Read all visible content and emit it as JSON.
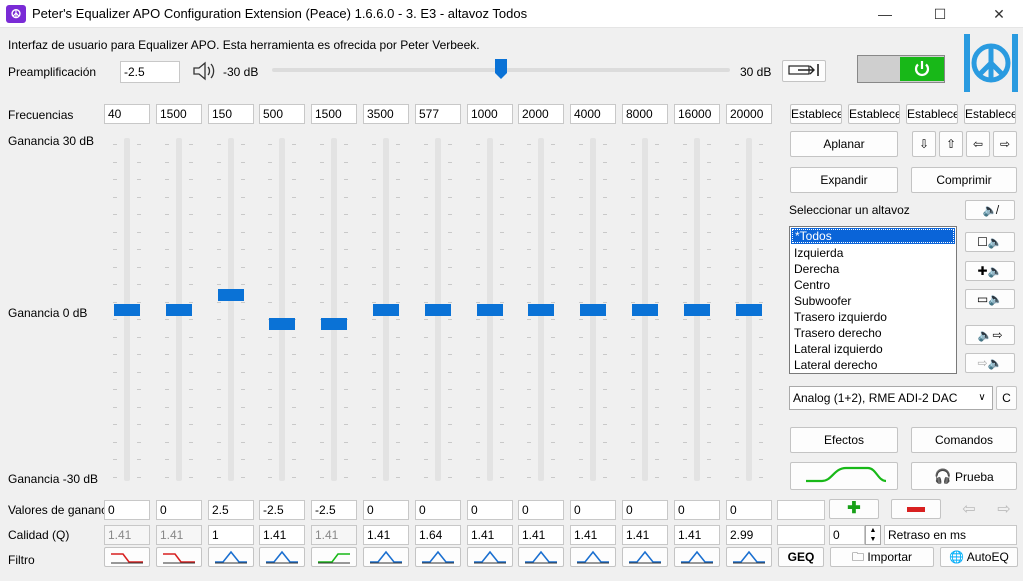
{
  "window": {
    "title": "Peter's Equalizer APO Configuration Extension (Peace) 1.6.6.0 - 3. E3 - altavoz Todos",
    "minimize": "—",
    "maximize": "☐",
    "close": "✕"
  },
  "header": {
    "description": "Interfaz de usuario para Equalizer APO. Esta herramienta es ofrecida por Peter Verbeek.",
    "preamp_label": "Preamplificación",
    "preamp_value": "-2.5",
    "min_db": "-30 dB",
    "max_db": "30 dB",
    "preamp_slider_fraction": 0.5,
    "power_on": true
  },
  "rows": {
    "frequencies_label": "Frecuencias",
    "gain_top_label": "Ganancia 30 dB",
    "gain_mid_label": "Ganancia 0 dB",
    "gain_bottom_label": "Ganancia -30 dB",
    "gains_label": "Valores de ganancia",
    "quality_label": "Calidad (Q)",
    "filter_label": "Filtro"
  },
  "bands": [
    {
      "freq": "40",
      "gain": "0",
      "q": "1.41",
      "q_disabled": true,
      "filter": "low-shelf"
    },
    {
      "freq": "1500",
      "gain": "0",
      "q": "1.41",
      "q_disabled": true,
      "filter": "low-shelf"
    },
    {
      "freq": "150",
      "gain": "2.5",
      "q": "1",
      "q_disabled": false,
      "filter": "peak"
    },
    {
      "freq": "500",
      "gain": "-2.5",
      "q": "1.41",
      "q_disabled": false,
      "filter": "peak"
    },
    {
      "freq": "1500",
      "gain": "-2.5",
      "q": "1.41",
      "q_disabled": true,
      "filter": "high-shelf"
    },
    {
      "freq": "3500",
      "gain": "0",
      "q": "1.41",
      "q_disabled": false,
      "filter": "peak"
    },
    {
      "freq": "577",
      "gain": "0",
      "q": "1.64",
      "q_disabled": false,
      "filter": "peak"
    },
    {
      "freq": "1000",
      "gain": "0",
      "q": "1.41",
      "q_disabled": false,
      "filter": "peak"
    },
    {
      "freq": "2000",
      "gain": "0",
      "q": "1.41",
      "q_disabled": false,
      "filter": "peak"
    },
    {
      "freq": "4000",
      "gain": "0",
      "q": "1.41",
      "q_disabled": false,
      "filter": "peak"
    },
    {
      "freq": "8000",
      "gain": "0",
      "q": "1.41",
      "q_disabled": false,
      "filter": "peak"
    },
    {
      "freq": "16000",
      "gain": "0",
      "q": "1.41",
      "q_disabled": false,
      "filter": "peak"
    },
    {
      "freq": "20000",
      "gain": "0",
      "q": "2.99",
      "q_disabled": false,
      "filter": "peak"
    }
  ],
  "right_panel": {
    "preset_buttons": [
      "Establecer",
      "Establecer",
      "Establecer",
      "Establecer"
    ],
    "flatten": "Aplanar",
    "expand": "Expandir",
    "compress": "Comprimir",
    "select_speaker": "Seleccionar un altavoz",
    "speakers": [
      "*Todos",
      "Izquierda",
      "Derecha",
      "Centro",
      "Subwoofer",
      "Trasero izquierdo",
      "Trasero derecho",
      "Lateral izquierdo",
      "Lateral derecho"
    ],
    "selected_speaker_index": 0,
    "device": "Analog (1+2), RME ADI-2 DAC",
    "device_btn": "C",
    "effects": "Efectos",
    "commands": "Comandos",
    "test": "Prueba",
    "delay_value": "0",
    "delay_label": "Retraso en ms",
    "geq": "GEQ",
    "import": "Importar",
    "autoeq": "AutoEQ"
  },
  "colors": {
    "accent": "#0a72d6",
    "power_on": "#18b818",
    "logo": "#2a9be0"
  }
}
